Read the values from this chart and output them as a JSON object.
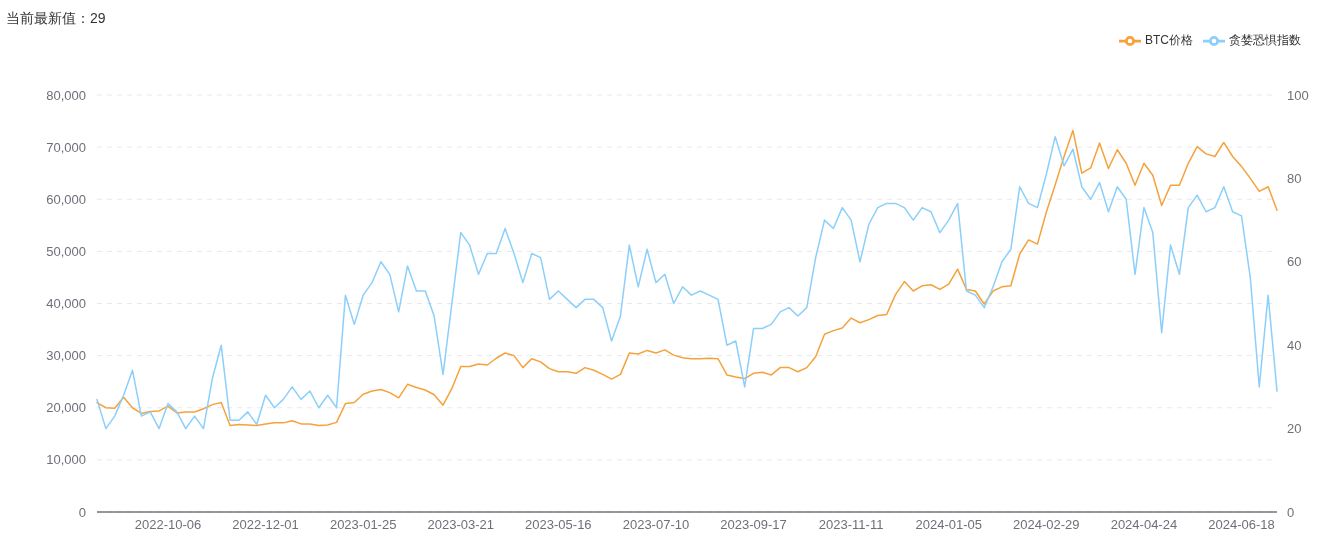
{
  "chart_data": {
    "type": "line",
    "title": "当前最新值：29",
    "categories": [
      null,
      null,
      null,
      null,
      null,
      null,
      null,
      null,
      "2022-10-06",
      null,
      null,
      null,
      null,
      null,
      null,
      null,
      null,
      null,
      null,
      "2022-12-01",
      null,
      null,
      null,
      null,
      null,
      null,
      null,
      null,
      null,
      null,
      "2023-01-25",
      null,
      null,
      null,
      null,
      null,
      null,
      null,
      null,
      null,
      null,
      "2023-03-21",
      null,
      null,
      null,
      null,
      null,
      null,
      null,
      null,
      null,
      null,
      "2023-05-16",
      null,
      null,
      null,
      null,
      null,
      null,
      null,
      null,
      null,
      null,
      "2023-07-10",
      null,
      null,
      null,
      null,
      null,
      null,
      null,
      null,
      null,
      null,
      "2023-09-17",
      null,
      null,
      null,
      null,
      null,
      null,
      null,
      null,
      null,
      null,
      "2023-11-11",
      null,
      null,
      null,
      null,
      null,
      null,
      null,
      null,
      null,
      null,
      "2024-01-05",
      null,
      null,
      null,
      null,
      null,
      null,
      null,
      null,
      null,
      null,
      "2024-02-29",
      null,
      null,
      null,
      null,
      null,
      null,
      null,
      null,
      null,
      null,
      "2024-04-24",
      null,
      null,
      null,
      null,
      null,
      null,
      null,
      null,
      null,
      null,
      "2024-06-18",
      null,
      null,
      null,
      null
    ],
    "series": [
      {
        "name": "BTC价格",
        "color": "#f5a23c",
        "values": [
          21000,
          20000,
          19900,
          22000,
          20000,
          18900,
          19300,
          19400,
          20300,
          19000,
          19200,
          19200,
          19800,
          20600,
          21000,
          16600,
          16800,
          16700,
          16600,
          16900,
          17100,
          17100,
          17500,
          16900,
          16900,
          16600,
          16700,
          17200,
          20800,
          21000,
          22600,
          23200,
          23500,
          22900,
          21900,
          24500,
          23900,
          23400,
          22500,
          20500,
          23700,
          27900,
          27900,
          28400,
          28200,
          29500,
          30500,
          30000,
          27700,
          29400,
          28800,
          27500,
          26900,
          26900,
          26600,
          27700,
          27200,
          26400,
          25500,
          26400,
          30500,
          30300,
          31000,
          30500,
          31100,
          30100,
          29600,
          29400,
          29400,
          29500,
          29400,
          26300,
          25900,
          25600,
          26600,
          26800,
          26300,
          27700,
          27700,
          26900,
          27700,
          29800,
          34100,
          34800,
          35300,
          37200,
          36300,
          36900,
          37700,
          37900,
          41700,
          44200,
          42400,
          43400,
          43600,
          42700,
          43700,
          46600,
          42700,
          42400,
          39900,
          42400,
          43200,
          43400,
          49500,
          52200,
          51400,
          57500,
          62800,
          68200,
          73200,
          65000,
          66000,
          70800,
          65900,
          69500,
          66900,
          62700,
          66900,
          64600,
          58800,
          62700,
          62700,
          66900,
          70100,
          68700,
          68200,
          70900,
          68200,
          66300,
          64000,
          61500,
          62400,
          57900
        ]
      },
      {
        "name": "贪婪恐惧指数",
        "color": "#8ccffb",
        "axis": "y2",
        "values": [
          27,
          20,
          23,
          28,
          34,
          23,
          24,
          20,
          26,
          24,
          20,
          23,
          20,
          32,
          40,
          22,
          22,
          24,
          21,
          28,
          25,
          27,
          30,
          27,
          29,
          25,
          28,
          25,
          52,
          45,
          52,
          55,
          60,
          57,
          48,
          59,
          53,
          53,
          47,
          33,
          50,
          67,
          64,
          57,
          62,
          62,
          68,
          62,
          55,
          62,
          61,
          51,
          53,
          51,
          49,
          51,
          51,
          49,
          41,
          47,
          64,
          54,
          63,
          55,
          57,
          50,
          54,
          52,
          53,
          52,
          51,
          40,
          41,
          30,
          44,
          44,
          45,
          48,
          49,
          47,
          49,
          61,
          70,
          68,
          73,
          70,
          60,
          69,
          73,
          74,
          74,
          73,
          70,
          73,
          72,
          67,
          70,
          74,
          53,
          52,
          49,
          54,
          60,
          63,
          78,
          74,
          73,
          81,
          90,
          83,
          87,
          78,
          75,
          79,
          72,
          78,
          75,
          57,
          73,
          67,
          43,
          64,
          57,
          73,
          76,
          72,
          73,
          78,
          72,
          71,
          56,
          30,
          52,
          29
        ]
      }
    ],
    "ylim": [
      0,
      80000
    ],
    "yticks": [
      0,
      {
        "value": 10000,
        "label": "10,000"
      },
      {
        "value": 20000,
        "label": "20,000"
      },
      {
        "value": 30000,
        "label": "30,000"
      },
      {
        "value": 40000,
        "label": "40,000"
      },
      {
        "value": 50000,
        "label": "50,000"
      },
      {
        "value": 60000,
        "label": "60,000"
      },
      {
        "value": 70000,
        "label": "70,000"
      },
      {
        "value": 80000,
        "label": "80,000"
      }
    ],
    "y2lim": [
      0,
      100
    ],
    "y2ticks": [
      0,
      20,
      40,
      60,
      80,
      100
    ],
    "grid": "y",
    "legend": "top right",
    "marker": "none"
  }
}
